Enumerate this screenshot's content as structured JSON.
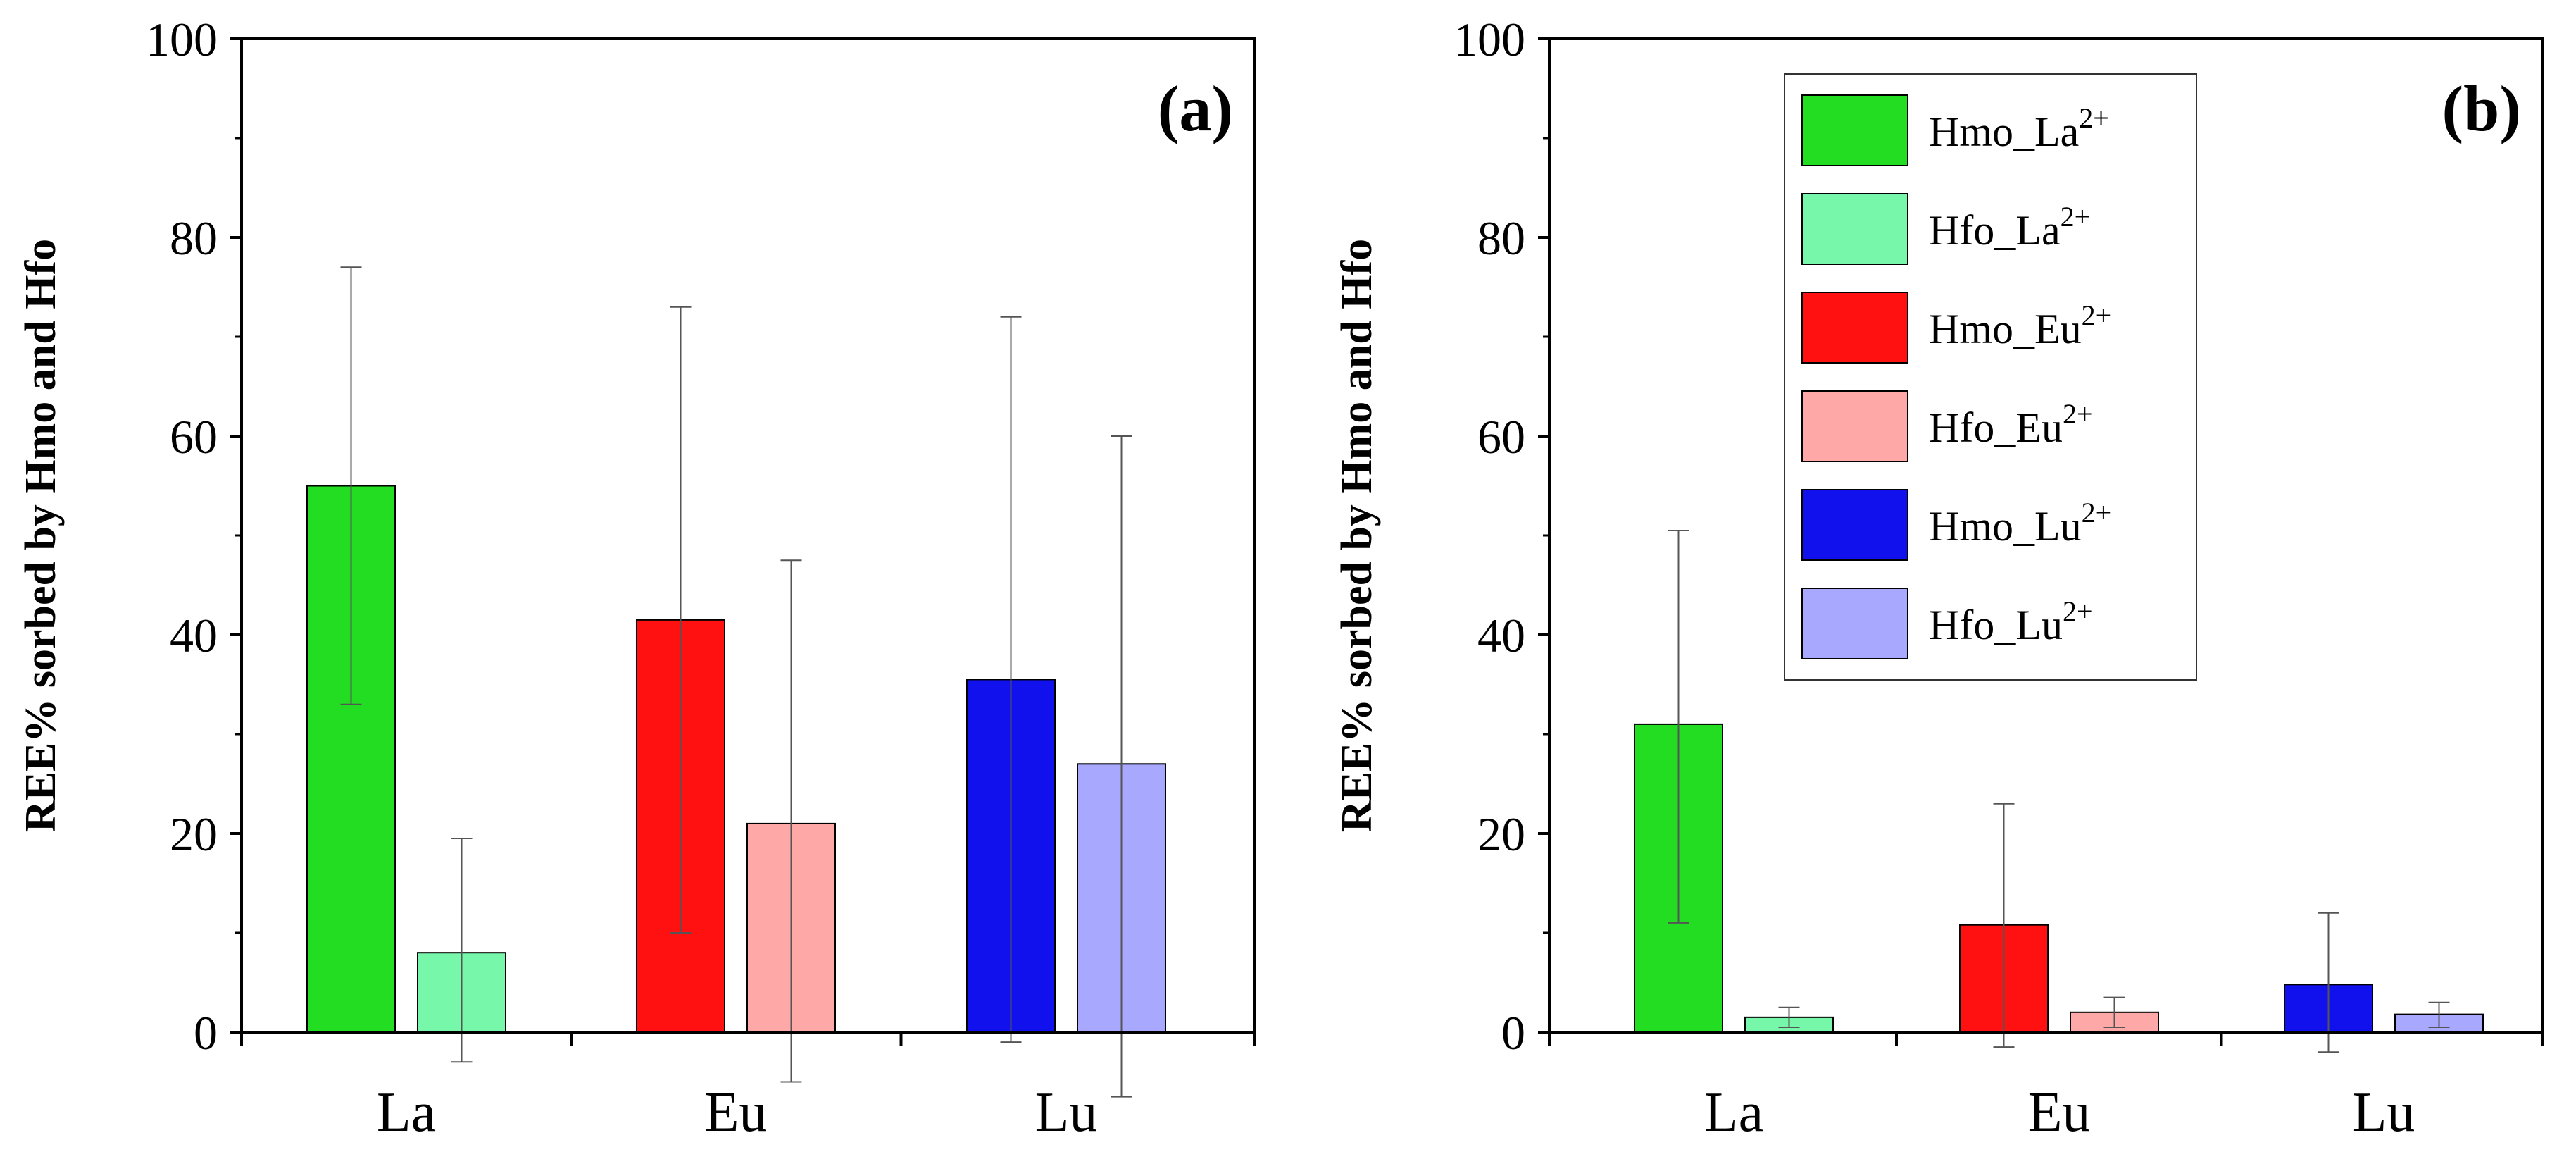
{
  "chart_data": [
    {
      "type": "bar",
      "panel_label": "(a)",
      "ylabel": "REE% sorbed by Hmo and Hfo",
      "xlabel": "",
      "ylim": [
        0,
        100
      ],
      "yticks": [
        0,
        20,
        40,
        60,
        80,
        100
      ],
      "categories": [
        "La",
        "Eu",
        "Lu"
      ],
      "bars": [
        {
          "category": "La",
          "series": "Hmo_La",
          "value": 55,
          "err_low": 33,
          "err_high": 77,
          "color": "#22dd22"
        },
        {
          "category": "La",
          "series": "Hfo_La",
          "value": 8,
          "err_low": -3,
          "err_high": 19.5,
          "color": "#77f7a9"
        },
        {
          "category": "Eu",
          "series": "Hmo_Eu",
          "value": 41.5,
          "err_low": 10,
          "err_high": 73,
          "color": "#ff1111"
        },
        {
          "category": "Eu",
          "series": "Hfo_Eu",
          "value": 21,
          "err_low": -5,
          "err_high": 47.5,
          "color": "#ffa8a8"
        },
        {
          "category": "Lu",
          "series": "Hmo_Lu",
          "value": 35.5,
          "err_low": -1,
          "err_high": 72,
          "color": "#1111ee"
        },
        {
          "category": "Lu",
          "series": "Hfo_Lu",
          "value": 27,
          "err_low": -6.5,
          "err_high": 60,
          "color": "#a8a8ff"
        }
      ]
    },
    {
      "type": "bar",
      "panel_label": "(b)",
      "ylabel": "REE% sorbed by Hmo and Hfo",
      "xlabel": "",
      "ylim": [
        0,
        100
      ],
      "yticks": [
        0,
        20,
        40,
        60,
        80,
        100
      ],
      "categories": [
        "La",
        "Eu",
        "Lu"
      ],
      "bars": [
        {
          "category": "La",
          "series": "Hmo_La",
          "value": 31,
          "err_low": 11,
          "err_high": 50.5,
          "color": "#22dd22"
        },
        {
          "category": "La",
          "series": "Hfo_La",
          "value": 1.5,
          "err_low": 0.5,
          "err_high": 2.5,
          "color": "#77f7a9"
        },
        {
          "category": "Eu",
          "series": "Hmo_Eu",
          "value": 10.8,
          "err_low": -1.5,
          "err_high": 23,
          "color": "#ff1111"
        },
        {
          "category": "Eu",
          "series": "Hfo_Eu",
          "value": 2,
          "err_low": 0.5,
          "err_high": 3.5,
          "color": "#ffa8a8"
        },
        {
          "category": "Lu",
          "series": "Hmo_Lu",
          "value": 4.8,
          "err_low": -2,
          "err_high": 12,
          "color": "#1111ee"
        },
        {
          "category": "Lu",
          "series": "Hfo_Lu",
          "value": 1.8,
          "err_low": 0.5,
          "err_high": 3,
          "color": "#a8a8ff"
        }
      ],
      "legend": {
        "placement": "top-right",
        "entries": [
          {
            "name": "Hmo_La",
            "sup": "2+",
            "color": "#22dd22"
          },
          {
            "name": "Hfo_La",
            "sup": "2+",
            "color": "#77f7a9"
          },
          {
            "name": "Hmo_Eu",
            "sup": "2+",
            "color": "#ff1111"
          },
          {
            "name": "Hfo_Eu",
            "sup": "2+",
            "color": "#ffa8a8"
          },
          {
            "name": "Hmo_Lu",
            "sup": "2+",
            "color": "#1111ee"
          },
          {
            "name": "Hfo_Lu",
            "sup": "2+",
            "color": "#a8a8ff"
          }
        ]
      }
    }
  ]
}
